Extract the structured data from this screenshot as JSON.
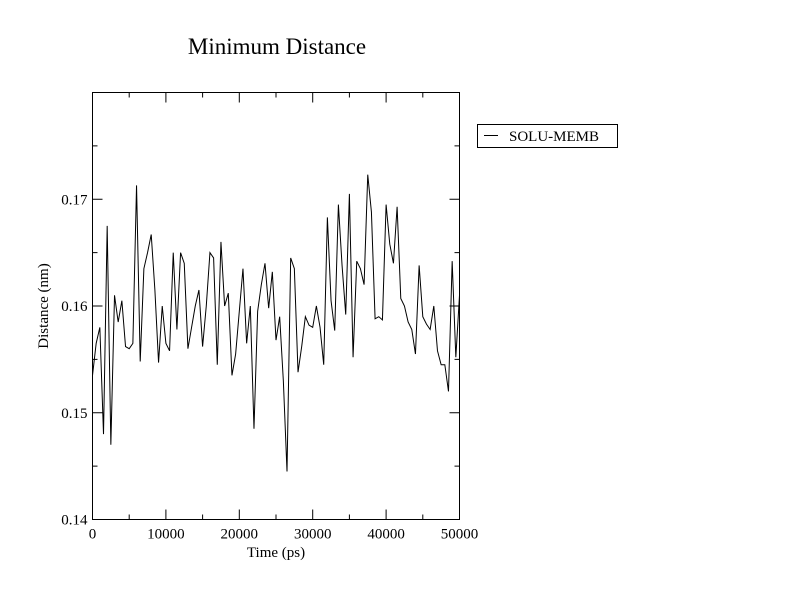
{
  "chart_data": {
    "type": "line",
    "title": "Minimum Distance",
    "xlabel": "Time (ps)",
    "ylabel": "Distance (nm)",
    "xlim": [
      0,
      50000
    ],
    "ylim": [
      0.14,
      0.18
    ],
    "x_ticks": [
      0,
      10000,
      20000,
      30000,
      40000,
      50000
    ],
    "x_tick_labels": [
      "0",
      "10000",
      "20000",
      "30000",
      "40000",
      "50000"
    ],
    "y_ticks": [
      0.14,
      0.15,
      0.16,
      0.17
    ],
    "y_tick_labels": [
      "0.14",
      "0.15",
      "0.16",
      "0.17"
    ],
    "grid": false,
    "legend_position": "right of plot, top",
    "series": [
      {
        "name": "SOLU-MEMB",
        "color": "#000000",
        "x": [
          0,
          500,
          1000,
          1500,
          2000,
          2500,
          3000,
          3500,
          4000,
          4500,
          5000,
          5500,
          6000,
          6500,
          7000,
          7500,
          8000,
          8500,
          9000,
          9500,
          10000,
          10500,
          11000,
          11500,
          12000,
          12500,
          13000,
          13500,
          14000,
          14500,
          15000,
          15500,
          16000,
          16500,
          17000,
          17500,
          18000,
          18500,
          19000,
          19500,
          20000,
          20500,
          21000,
          21500,
          22000,
          22500,
          23000,
          23500,
          24000,
          24500,
          25000,
          25500,
          26000,
          26500,
          27000,
          27500,
          28000,
          28500,
          29000,
          29500,
          30000,
          30500,
          31000,
          31500,
          32000,
          32500,
          33000,
          33500,
          34000,
          34500,
          35000,
          35500,
          36000,
          36500,
          37000,
          37500,
          38000,
          38500,
          39000,
          39500,
          40000,
          40500,
          41000,
          41500,
          42000,
          42500,
          43000,
          43500,
          44000,
          44500,
          45000,
          45500,
          46000,
          46500,
          47000,
          47500,
          48000,
          48500,
          49000,
          49500,
          50000
        ],
        "y": [
          0.1535,
          0.1565,
          0.158,
          0.148,
          0.1675,
          0.147,
          0.161,
          0.1585,
          0.1605,
          0.1562,
          0.156,
          0.1565,
          0.1713,
          0.1548,
          0.1635,
          0.165,
          0.1667,
          0.1615,
          0.1547,
          0.16,
          0.1565,
          0.1558,
          0.165,
          0.1578,
          0.165,
          0.164,
          0.156,
          0.158,
          0.16,
          0.1615,
          0.1562,
          0.16,
          0.165,
          0.1645,
          0.1545,
          0.166,
          0.16,
          0.1612,
          0.1535,
          0.1555,
          0.1595,
          0.1635,
          0.1565,
          0.16,
          0.1485,
          0.1595,
          0.162,
          0.164,
          0.1598,
          0.1632,
          0.1568,
          0.159,
          0.153,
          0.1445,
          0.1645,
          0.1635,
          0.1538,
          0.1562,
          0.159,
          0.1582,
          0.158,
          0.16,
          0.158,
          0.1545,
          0.1683,
          0.1605,
          0.1577,
          0.1695,
          0.1638,
          0.1592,
          0.1705,
          0.1552,
          0.1642,
          0.1635,
          0.162,
          0.1723,
          0.1688,
          0.1588,
          0.159,
          0.1587,
          0.1695,
          0.1658,
          0.164,
          0.1693,
          0.1607,
          0.16,
          0.1585,
          0.1578,
          0.1555,
          0.1638,
          0.159,
          0.1583,
          0.1578,
          0.16,
          0.1558,
          0.1545,
          0.1545,
          0.152,
          0.1642,
          0.1552,
          0.161
        ]
      }
    ]
  }
}
